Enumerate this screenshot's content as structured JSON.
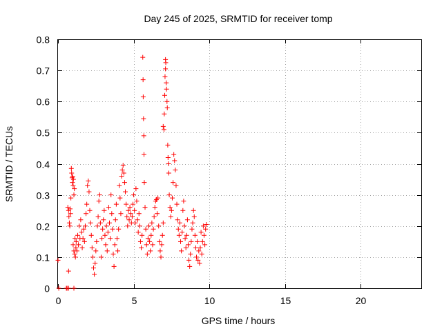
{
  "chart_data": {
    "type": "scatter",
    "title": "Day 245 of 2025, SRMTID for receiver tomp",
    "xlabel": "GPS time / hours",
    "ylabel": "SRMTID / TECUs",
    "xlim": [
      0,
      24
    ],
    "ylim": [
      0,
      0.8
    ],
    "xticks": [
      0,
      5,
      10,
      15,
      20
    ],
    "xtick_labels": [
      "0",
      "5",
      "10",
      "15",
      "20"
    ],
    "yticks": [
      0,
      0.1,
      0.2,
      0.3,
      0.4,
      0.5,
      0.6,
      0.7,
      0.8
    ],
    "ytick_labels": [
      "0",
      "0.1",
      "0.2",
      "0.3",
      "0.4",
      "0.5",
      "0.6",
      "0.7",
      "0.8"
    ],
    "grid": true,
    "marker": "+",
    "series": [
      {
        "name": "SRMTID",
        "color": "#ff0000",
        "points": [
          [
            0.0,
            0.09
          ],
          [
            0.05,
            0.0
          ],
          [
            0.55,
            0.0
          ],
          [
            0.6,
            0.0
          ],
          [
            0.7,
            0.0
          ],
          [
            1.05,
            0.0
          ],
          [
            0.7,
            0.055
          ],
          [
            0.65,
            0.26
          ],
          [
            0.7,
            0.25
          ],
          [
            0.72,
            0.23
          ],
          [
            0.75,
            0.21
          ],
          [
            0.78,
            0.2
          ],
          [
            0.8,
            0.255
          ],
          [
            0.83,
            0.24
          ],
          [
            0.85,
            0.29
          ],
          [
            0.88,
            0.385
          ],
          [
            0.9,
            0.37
          ],
          [
            0.93,
            0.355
          ],
          [
            0.95,
            0.34
          ],
          [
            0.97,
            0.36
          ],
          [
            1.0,
            0.33
          ],
          [
            1.02,
            0.35
          ],
          [
            1.05,
            0.3
          ],
          [
            1.08,
            0.32
          ],
          [
            1.0,
            0.14
          ],
          [
            1.05,
            0.12
          ],
          [
            1.1,
            0.11
          ],
          [
            1.12,
            0.16
          ],
          [
            1.15,
            0.1
          ],
          [
            1.18,
            0.13
          ],
          [
            1.2,
            0.15
          ],
          [
            1.25,
            0.12
          ],
          [
            1.3,
            0.17
          ],
          [
            1.35,
            0.14
          ],
          [
            1.4,
            0.2
          ],
          [
            1.45,
            0.16
          ],
          [
            1.5,
            0.22
          ],
          [
            1.55,
            0.18
          ],
          [
            1.6,
            0.13
          ],
          [
            1.65,
            0.16
          ],
          [
            1.7,
            0.19
          ],
          [
            1.75,
            0.15
          ],
          [
            1.8,
            0.2
          ],
          [
            1.85,
            0.24
          ],
          [
            1.9,
            0.27
          ],
          [
            1.95,
            0.33
          ],
          [
            2.0,
            0.345
          ],
          [
            2.05,
            0.31
          ],
          [
            2.1,
            0.25
          ],
          [
            2.15,
            0.21
          ],
          [
            2.2,
            0.17
          ],
          [
            2.25,
            0.13
          ],
          [
            2.3,
            0.1
          ],
          [
            2.35,
            0.065
          ],
          [
            2.4,
            0.045
          ],
          [
            2.45,
            0.08
          ],
          [
            2.5,
            0.12
          ],
          [
            2.55,
            0.15
          ],
          [
            2.6,
            0.2
          ],
          [
            2.65,
            0.23
          ],
          [
            2.7,
            0.28
          ],
          [
            2.75,
            0.3
          ],
          [
            2.8,
            0.21
          ],
          [
            2.85,
            0.1
          ],
          [
            2.9,
            0.16
          ],
          [
            2.95,
            0.19
          ],
          [
            3.0,
            0.22
          ],
          [
            3.05,
            0.25
          ],
          [
            3.1,
            0.17
          ],
          [
            3.15,
            0.14
          ],
          [
            3.2,
            0.2
          ],
          [
            3.25,
            0.12
          ],
          [
            3.3,
            0.18
          ],
          [
            3.35,
            0.26
          ],
          [
            3.4,
            0.21
          ],
          [
            3.45,
            0.16
          ],
          [
            3.5,
            0.3
          ],
          [
            3.55,
            0.24
          ],
          [
            3.6,
            0.19
          ],
          [
            3.65,
            0.11
          ],
          [
            3.7,
            0.07
          ],
          [
            3.75,
            0.14
          ],
          [
            3.8,
            0.22
          ],
          [
            3.85,
            0.27
          ],
          [
            3.9,
            0.16
          ],
          [
            3.95,
            0.12
          ],
          [
            4.0,
            0.19
          ],
          [
            4.05,
            0.33
          ],
          [
            4.1,
            0.29
          ],
          [
            4.15,
            0.24
          ],
          [
            4.2,
            0.36
          ],
          [
            4.25,
            0.38
          ],
          [
            4.3,
            0.395
          ],
          [
            4.35,
            0.37
          ],
          [
            4.4,
            0.34
          ],
          [
            4.45,
            0.31
          ],
          [
            4.5,
            0.27
          ],
          [
            4.55,
            0.23
          ],
          [
            4.6,
            0.2
          ],
          [
            4.65,
            0.25
          ],
          [
            4.7,
            0.22
          ],
          [
            4.75,
            0.26
          ],
          [
            4.8,
            0.24
          ],
          [
            4.85,
            0.21
          ],
          [
            4.9,
            0.23
          ],
          [
            4.95,
            0.27
          ],
          [
            5.0,
            0.3
          ],
          [
            5.05,
            0.25
          ],
          [
            5.1,
            0.21
          ],
          [
            5.15,
            0.32
          ],
          [
            5.2,
            0.28
          ],
          [
            5.25,
            0.22
          ],
          [
            5.3,
            0.18
          ],
          [
            5.35,
            0.24
          ],
          [
            5.4,
            0.2
          ],
          [
            5.45,
            0.15
          ],
          [
            5.5,
            0.13
          ],
          [
            5.55,
            0.17
          ],
          [
            5.6,
            0.742
          ],
          [
            5.62,
            0.67
          ],
          [
            5.63,
            0.615
          ],
          [
            5.65,
            0.545
          ],
          [
            5.67,
            0.49
          ],
          [
            5.68,
            0.43
          ],
          [
            5.7,
            0.34
          ],
          [
            5.75,
            0.26
          ],
          [
            5.8,
            0.19
          ],
          [
            5.85,
            0.14
          ],
          [
            5.9,
            0.11
          ],
          [
            5.95,
            0.16
          ],
          [
            6.0,
            0.2
          ],
          [
            6.05,
            0.15
          ],
          [
            6.1,
            0.12
          ],
          [
            6.15,
            0.17
          ],
          [
            6.2,
            0.21
          ],
          [
            6.25,
            0.14
          ],
          [
            6.3,
            0.19
          ],
          [
            6.35,
            0.23
          ],
          [
            6.4,
            0.26
          ],
          [
            6.45,
            0.28
          ],
          [
            6.5,
            0.285
          ],
          [
            6.55,
            0.24
          ],
          [
            6.6,
            0.29
          ],
          [
            6.65,
            0.2
          ],
          [
            6.7,
            0.15
          ],
          [
            6.75,
            0.12
          ],
          [
            6.8,
            0.1
          ],
          [
            6.85,
            0.14
          ],
          [
            6.9,
            0.17
          ],
          [
            6.95,
            0.21
          ],
          [
            6.95,
            0.52
          ],
          [
            7.0,
            0.51
          ],
          [
            7.02,
            0.56
          ],
          [
            7.05,
            0.62
          ],
          [
            7.07,
            0.68
          ],
          [
            7.1,
            0.705
          ],
          [
            7.1,
            0.735
          ],
          [
            7.12,
            0.725
          ],
          [
            7.15,
            0.66
          ],
          [
            7.17,
            0.64
          ],
          [
            7.2,
            0.6
          ],
          [
            7.22,
            0.58
          ],
          [
            7.25,
            0.46
          ],
          [
            7.27,
            0.42
          ],
          [
            7.3,
            0.4
          ],
          [
            7.32,
            0.37
          ],
          [
            7.35,
            0.3
          ],
          [
            7.4,
            0.26
          ],
          [
            7.45,
            0.23
          ],
          [
            7.5,
            0.25
          ],
          [
            7.55,
            0.29
          ],
          [
            7.6,
            0.34
          ],
          [
            7.65,
            0.43
          ],
          [
            7.7,
            0.41
          ],
          [
            7.75,
            0.38
          ],
          [
            7.8,
            0.33
          ],
          [
            7.85,
            0.27
          ],
          [
            7.9,
            0.22
          ],
          [
            7.95,
            0.19
          ],
          [
            8.0,
            0.17
          ],
          [
            8.05,
            0.21
          ],
          [
            8.1,
            0.15
          ],
          [
            8.15,
            0.12
          ],
          [
            8.2,
            0.18
          ],
          [
            8.25,
            0.25
          ],
          [
            8.3,
            0.28
          ],
          [
            8.35,
            0.2
          ],
          [
            8.4,
            0.16
          ],
          [
            8.45,
            0.13
          ],
          [
            8.5,
            0.17
          ],
          [
            8.55,
            0.22
          ],
          [
            8.6,
            0.14
          ],
          [
            8.65,
            0.09
          ],
          [
            8.7,
            0.07
          ],
          [
            8.75,
            0.11
          ],
          [
            8.8,
            0.15
          ],
          [
            8.85,
            0.19
          ],
          [
            8.9,
            0.21
          ],
          [
            8.95,
            0.25
          ],
          [
            9.0,
            0.23
          ],
          [
            9.05,
            0.17
          ],
          [
            9.1,
            0.13
          ],
          [
            9.15,
            0.1
          ],
          [
            9.2,
            0.15
          ],
          [
            9.25,
            0.09
          ],
          [
            9.3,
            0.12
          ],
          [
            9.35,
            0.08
          ],
          [
            9.4,
            0.13
          ],
          [
            9.45,
            0.18
          ],
          [
            9.5,
            0.11
          ],
          [
            9.55,
            0.15
          ],
          [
            9.6,
            0.2
          ],
          [
            9.65,
            0.17
          ],
          [
            9.7,
            0.14
          ],
          [
            9.75,
            0.19
          ],
          [
            9.8,
            0.205
          ]
        ]
      }
    ]
  }
}
